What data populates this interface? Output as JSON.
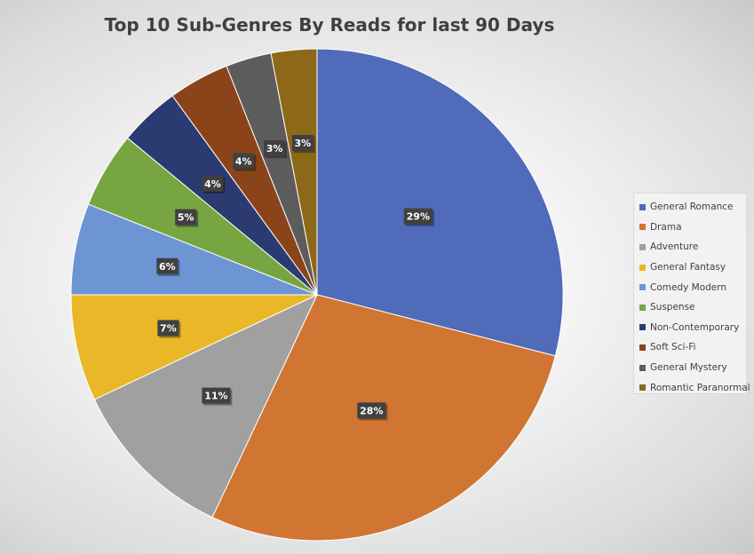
{
  "chart_data": {
    "type": "pie",
    "title": "Top 10 Sub-Genres By Reads for last 90 Days",
    "legend_position": "right",
    "slices": [
      {
        "name": "General Romance",
        "value": 29,
        "label": "29%",
        "color": "#4f6bba"
      },
      {
        "name": "Drama",
        "value": 28,
        "label": "28%",
        "color": "#d07632"
      },
      {
        "name": "Adventure",
        "value": 11,
        "label": "11%",
        "color": "#a0a0a0"
      },
      {
        "name": "General Fantasy",
        "value": 7,
        "label": "7%",
        "color": "#e9b727"
      },
      {
        "name": "Comedy Modern",
        "value": 6,
        "label": "6%",
        "color": "#6d94d3"
      },
      {
        "name": "Suspense",
        "value": 5,
        "label": "5%",
        "color": "#77a541"
      },
      {
        "name": "Non-Contemporary",
        "value": 4,
        "label": "4%",
        "color": "#2b3b72"
      },
      {
        "name": "Soft Sci-Fi",
        "value": 4,
        "label": "4%",
        "color": "#8b4419"
      },
      {
        "name": "General Mystery",
        "value": 3,
        "label": "3%",
        "color": "#5c5c5c"
      },
      {
        "name": "Romantic Paranormal",
        "value": 3,
        "label": "3%",
        "color": "#8c6818"
      }
    ]
  }
}
